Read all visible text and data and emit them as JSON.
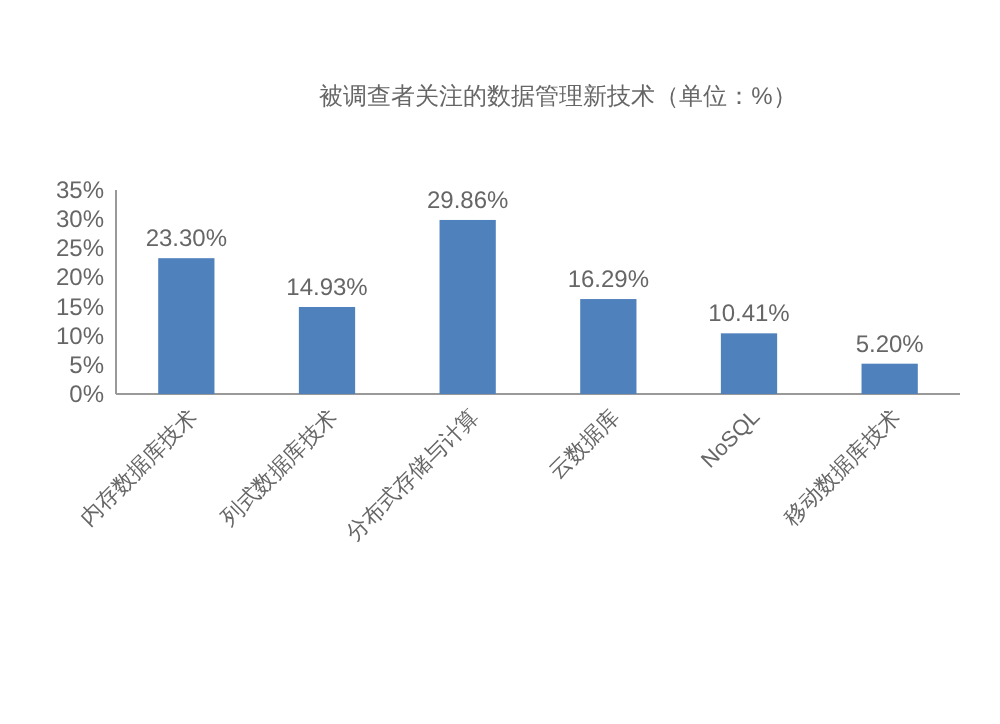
{
  "chart_data": {
    "type": "bar",
    "title": "被调查者关注的数据管理新技术（单位：%）",
    "categories": [
      "内存数据库技术",
      "列式数据库技术",
      "分布式存储与计算",
      "云数据库",
      "NoSQL",
      "移动数据库技术"
    ],
    "values": [
      23.3,
      14.93,
      29.86,
      16.29,
      10.41,
      5.2
    ],
    "value_labels": [
      "23.30%",
      "14.93%",
      "29.86%",
      "16.29%",
      "10.41%",
      "5.20%"
    ],
    "color": "#4f81bd",
    "ylim": [
      0,
      35
    ],
    "yticks": [
      {
        "value": 0,
        "label": "0%"
      },
      {
        "value": 5,
        "label": "5%"
      },
      {
        "value": 10,
        "label": "10%"
      },
      {
        "value": 15,
        "label": "15%"
      },
      {
        "value": 20,
        "label": "20%"
      },
      {
        "value": 25,
        "label": "25%"
      },
      {
        "value": 30,
        "label": "30%"
      },
      {
        "value": 35,
        "label": "35%"
      }
    ],
    "grid": false
  }
}
